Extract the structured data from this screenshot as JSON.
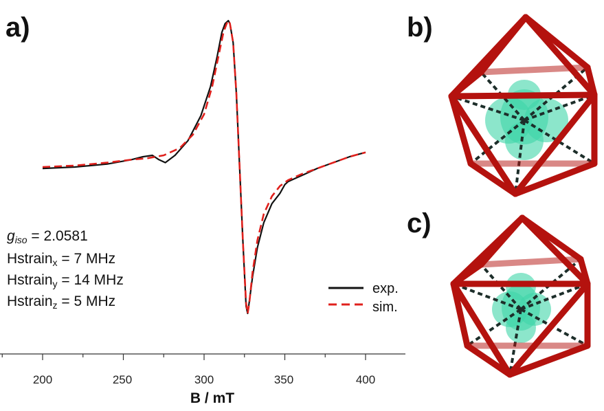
{
  "panels": {
    "a": "a)",
    "b": "b)",
    "c": "c)"
  },
  "params": {
    "g_symbol": "g",
    "g_sub": "iso",
    "g_value": " = 2.0581",
    "hx_prefix": "Hstrain",
    "hx_sub": "x",
    "hx_value": " = 7 MHz",
    "hy_prefix": "Hstrain",
    "hy_sub": "y",
    "hy_value": " = 14 MHz",
    "hz_prefix": "Hstrain",
    "hz_sub": "z",
    "hz_value": " = 5 MHz"
  },
  "legend": {
    "exp": "exp.",
    "sim": "sim."
  },
  "colors": {
    "exp": "#111111",
    "sim": "#e0201c",
    "frame": "#b4120e",
    "isosurface": "#3fd6a8"
  },
  "chart_data": {
    "type": "line",
    "title": "",
    "xlabel": "B / mT",
    "ylabel": "",
    "xlim": [
      200,
      400
    ],
    "ylim": [
      -1.0,
      1.0
    ],
    "xticks": [
      200,
      250,
      300,
      350,
      400
    ],
    "xtick_labels": [
      "200",
      "250",
      "300",
      "350",
      "400"
    ],
    "grid": false,
    "legend_position": "bottom-right",
    "series": [
      {
        "name": "exp.",
        "style": "solid",
        "x": [
          200,
          220,
          240,
          255,
          262,
          268,
          272,
          276,
          282,
          290,
          298,
          304,
          308,
          311,
          313,
          315,
          316,
          318,
          320,
          322,
          324,
          326,
          327,
          328,
          330,
          333,
          337,
          342,
          347,
          350,
          352,
          356,
          362,
          370,
          380,
          390,
          400
        ],
        "y": [
          -0.01,
          0.0,
          0.02,
          0.05,
          0.07,
          0.08,
          0.05,
          0.03,
          0.08,
          0.18,
          0.35,
          0.55,
          0.75,
          0.92,
          0.98,
          1.0,
          0.98,
          0.85,
          0.5,
          0.0,
          -0.5,
          -0.95,
          -1.0,
          -0.92,
          -0.75,
          -0.55,
          -0.38,
          -0.25,
          -0.18,
          -0.12,
          -0.1,
          -0.08,
          -0.05,
          -0.01,
          0.03,
          0.07,
          0.1
        ]
      },
      {
        "name": "sim.",
        "style": "dashed",
        "x": [
          200,
          220,
          240,
          255,
          265,
          275,
          285,
          293,
          300,
          305,
          309,
          312,
          314,
          315,
          316,
          318,
          320,
          322,
          324,
          326,
          327,
          328,
          330,
          333,
          337,
          342,
          347,
          352,
          360,
          370,
          380,
          390,
          400
        ],
        "y": [
          0.0,
          0.01,
          0.03,
          0.05,
          0.06,
          0.08,
          0.13,
          0.22,
          0.36,
          0.55,
          0.76,
          0.92,
          0.98,
          1.0,
          0.98,
          0.85,
          0.5,
          0.0,
          -0.5,
          -0.93,
          -1.0,
          -0.93,
          -0.72,
          -0.5,
          -0.32,
          -0.2,
          -0.13,
          -0.09,
          -0.05,
          -0.01,
          0.03,
          0.07,
          0.1
        ]
      }
    ]
  }
}
